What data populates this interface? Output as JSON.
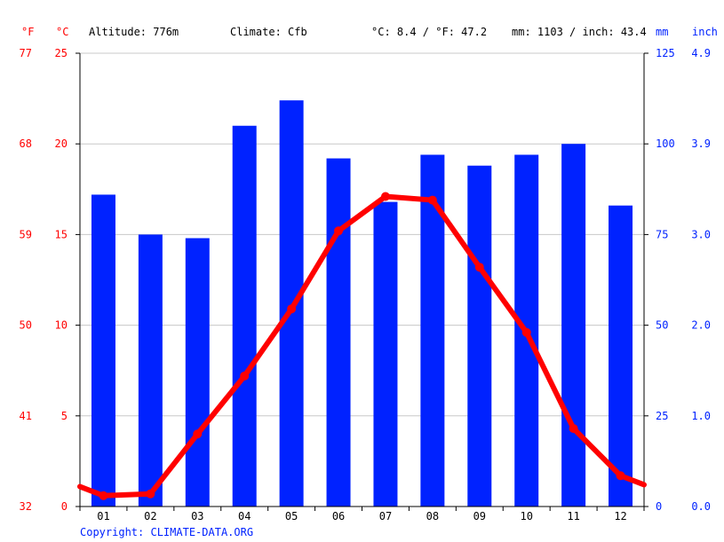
{
  "header": {
    "altitude": "Altitude: 776m",
    "climate": "Climate: Cfb",
    "avg_temp": "°C: 8.4 / °F: 47.2",
    "precip": "mm: 1103 / inch: 43.4"
  },
  "copyright": "Copyright: CLIMATE-DATA.ORG",
  "colors": {
    "temperature": "#ff0000",
    "precipitation": "#0022ff",
    "grid": "#c8c8c8"
  },
  "chart_data": {
    "type": "bar",
    "categories": [
      "01",
      "02",
      "03",
      "04",
      "05",
      "06",
      "07",
      "08",
      "09",
      "10",
      "11",
      "12"
    ],
    "series": [
      {
        "values": [
          86,
          75,
          74,
          105,
          112,
          96,
          84,
          97,
          94,
          97,
          100,
          83
        ]
      }
    ],
    "line_series": [
      {
        "values": [
          0.6,
          0.7,
          4.0,
          7.2,
          10.9,
          15.2,
          17.1,
          16.9,
          13.2,
          9.6,
          4.3,
          1.7
        ],
        "start_value": 1.1,
        "end_value": 1.2
      }
    ],
    "axes": {
      "left_f": {
        "label": "°F",
        "ticks": [
          "32",
          "41",
          "50",
          "59",
          "68",
          "77"
        ]
      },
      "left_c": {
        "label": "°C",
        "ticks": [
          "0",
          "5",
          "10",
          "15",
          "20",
          "25"
        ],
        "range": [
          0,
          25
        ]
      },
      "right_mm": {
        "label": "mm",
        "ticks": [
          "0",
          "25",
          "50",
          "75",
          "100",
          "125"
        ],
        "range": [
          0,
          125
        ]
      },
      "right_inch": {
        "label": "inch",
        "ticks": [
          "0.0",
          "1.0",
          "2.0",
          "3.0",
          "3.9",
          "4.9"
        ]
      }
    },
    "grid": true
  }
}
